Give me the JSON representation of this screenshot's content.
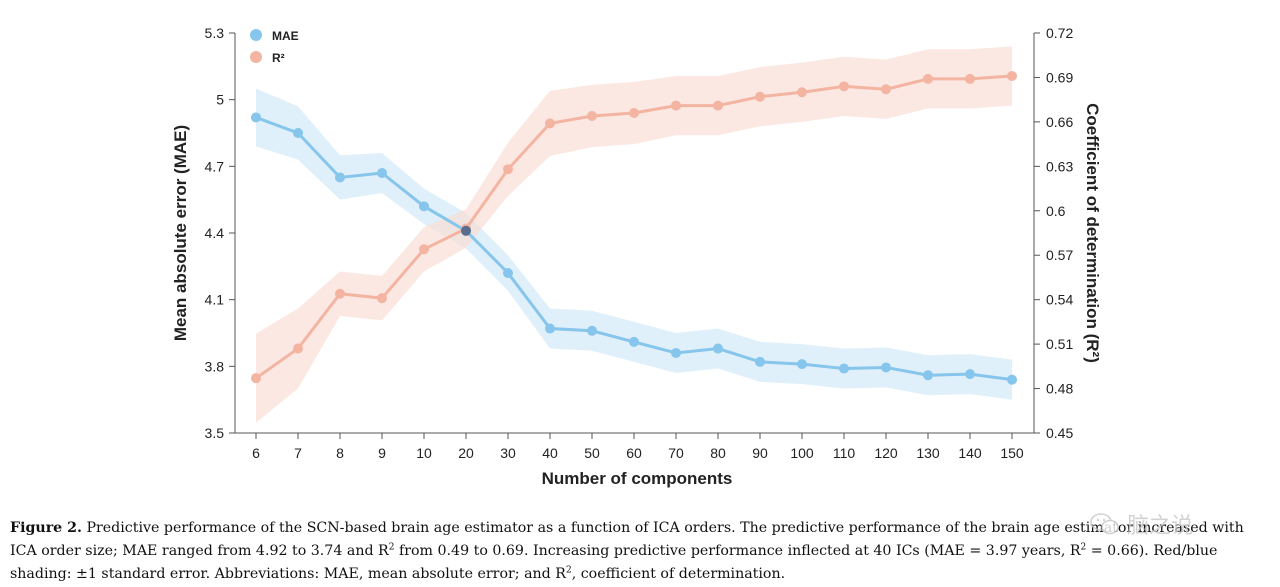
{
  "chart_data": {
    "type": "line",
    "categories": [
      "6",
      "7",
      "8",
      "9",
      "10",
      "20",
      "30",
      "40",
      "50",
      "60",
      "70",
      "80",
      "90",
      "100",
      "110",
      "120",
      "130",
      "140",
      "150"
    ],
    "xlabel": "Number of components",
    "ylabel_left": "Mean absolute error (MAE)",
    "ylabel_right": "Coefficient of determination (R²)",
    "ylim_left": [
      3.5,
      5.3
    ],
    "ylim_right": [
      0.45,
      0.72
    ],
    "yticks_left": [
      "3.5",
      "3.8",
      "4.1",
      "4.4",
      "4.7",
      "5",
      "5.3"
    ],
    "yticks_right": [
      "0.45",
      "0.48",
      "0.51",
      "0.54",
      "0.57",
      "0.6",
      "0.63",
      "0.66",
      "0.69",
      "0.72"
    ],
    "legend_position": "top-left",
    "series": [
      {
        "name": "MAE",
        "axis": "left",
        "color": "#86c5ec",
        "band_color": "#cfe8f8",
        "values": [
          4.92,
          4.85,
          4.65,
          4.67,
          4.52,
          4.41,
          4.22,
          3.97,
          3.96,
          3.91,
          3.86,
          3.88,
          3.82,
          3.81,
          3.79,
          3.795,
          3.76,
          3.765,
          3.74
        ],
        "se": [
          0.13,
          0.12,
          0.1,
          0.09,
          0.08,
          0.08,
          0.08,
          0.09,
          0.09,
          0.09,
          0.09,
          0.09,
          0.09,
          0.09,
          0.09,
          0.09,
          0.09,
          0.09,
          0.09
        ]
      },
      {
        "name": "R²",
        "axis": "right",
        "color": "#f4b4a2",
        "band_color": "#fbdcd2",
        "values": [
          0.487,
          0.507,
          0.544,
          0.541,
          0.574,
          0.588,
          0.628,
          0.659,
          0.664,
          0.666,
          0.671,
          0.671,
          0.677,
          0.68,
          0.684,
          0.682,
          0.689,
          0.689,
          0.691
        ],
        "se": [
          0.03,
          0.027,
          0.015,
          0.015,
          0.015,
          0.013,
          0.018,
          0.022,
          0.021,
          0.021,
          0.02,
          0.02,
          0.02,
          0.02,
          0.02,
          0.02,
          0.02,
          0.02,
          0.02
        ]
      }
    ],
    "crossing_marker": {
      "category": "20",
      "color": "#5a6d8c"
    }
  },
  "caption": {
    "label": "Figure 2.",
    "text_part1": " Predictive performance of the SCN-based brain age estimator as a function of ICA orders. The predictive performance of the brain age estimator increased with ICA order size; MAE ranged from 4.92 to 3.74 and R",
    "sup1": "2",
    "text_part2": " from 0.49 to 0.69. Increasing predictive performance inflected at 40 ICs (MAE = 3.97 years, R",
    "sup2": "2",
    "text_part3": " = 0.66). Red/blue shading: ±1 standard error. Abbreviations: MAE, mean absolute error; and R",
    "sup3": "2",
    "text_part4": ", coefficient of determination."
  },
  "watermark": {
    "text": "脑之说",
    "icon": "wechat-icon"
  }
}
